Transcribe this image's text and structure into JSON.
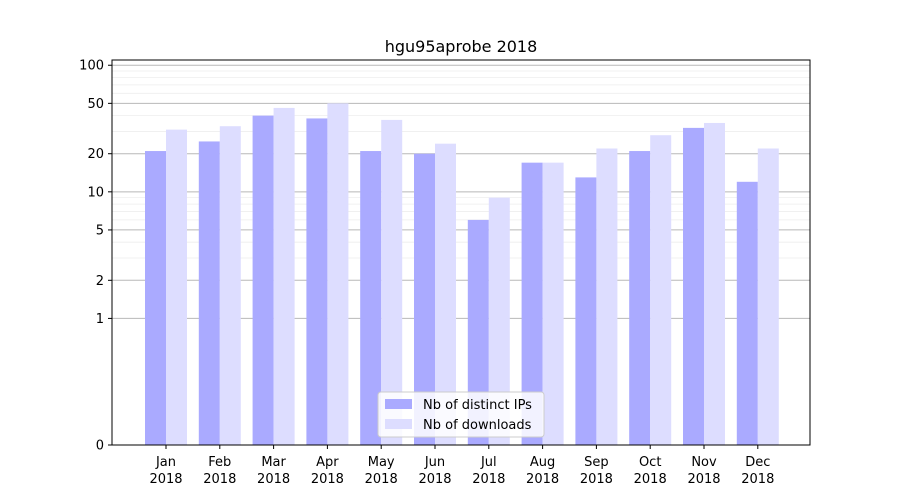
{
  "chart_data": {
    "type": "bar",
    "title": "hgu95aprobe 2018",
    "xlabel": "",
    "ylabel": "",
    "y_scale": "symlog",
    "ylim": [
      0,
      110
    ],
    "y_ticks": [
      0,
      1,
      2,
      5,
      10,
      20,
      50,
      100
    ],
    "categories": [
      [
        "Jan",
        "2018"
      ],
      [
        "Feb",
        "2018"
      ],
      [
        "Mar",
        "2018"
      ],
      [
        "Apr",
        "2018"
      ],
      [
        "May",
        "2018"
      ],
      [
        "Jun",
        "2018"
      ],
      [
        "Jul",
        "2018"
      ],
      [
        "Aug",
        "2018"
      ],
      [
        "Sep",
        "2018"
      ],
      [
        "Oct",
        "2018"
      ],
      [
        "Nov",
        "2018"
      ],
      [
        "Dec",
        "2018"
      ]
    ],
    "series": [
      {
        "name": "Nb of distinct IPs",
        "color": "#aaaaff",
        "values": [
          21,
          25,
          40,
          38,
          21,
          20,
          6,
          17,
          13,
          21,
          32,
          12
        ]
      },
      {
        "name": "Nb of downloads",
        "color": "#ddddff",
        "values": [
          31,
          33,
          46,
          50,
          37,
          24,
          9,
          17,
          22,
          28,
          35,
          22
        ]
      }
    ],
    "legend": {
      "position": "bottom-center"
    },
    "grid": true
  }
}
